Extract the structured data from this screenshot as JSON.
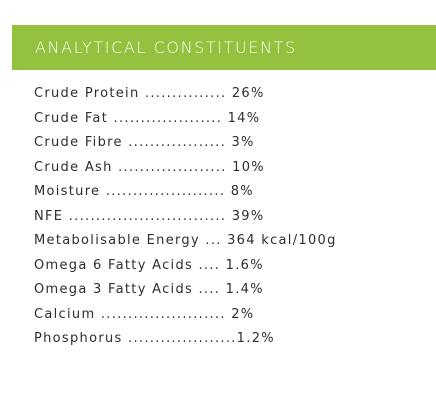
{
  "header": {
    "title": "ANALYTICAL CONSTITUENTS",
    "background_color": "#94c23f"
  },
  "text_color": "#2e2e2e",
  "constituents": [
    "Crude Protein ............... 26%",
    "Crude Fat .................... 14%",
    "Crude Fibre .................. 3%",
    "Crude Ash .................... 10%",
    "Moisture ...................... 8%",
    "NFE ............................. 39%",
    "Metabolisable Energy ... 364 kcal/100g",
    "Omega 6 Fatty Acids .... 1.6%",
    "Omega 3 Fatty Acids .... 1.4%",
    "Calcium ....................... 2%",
    "Phosphorus ....................1.2%"
  ]
}
